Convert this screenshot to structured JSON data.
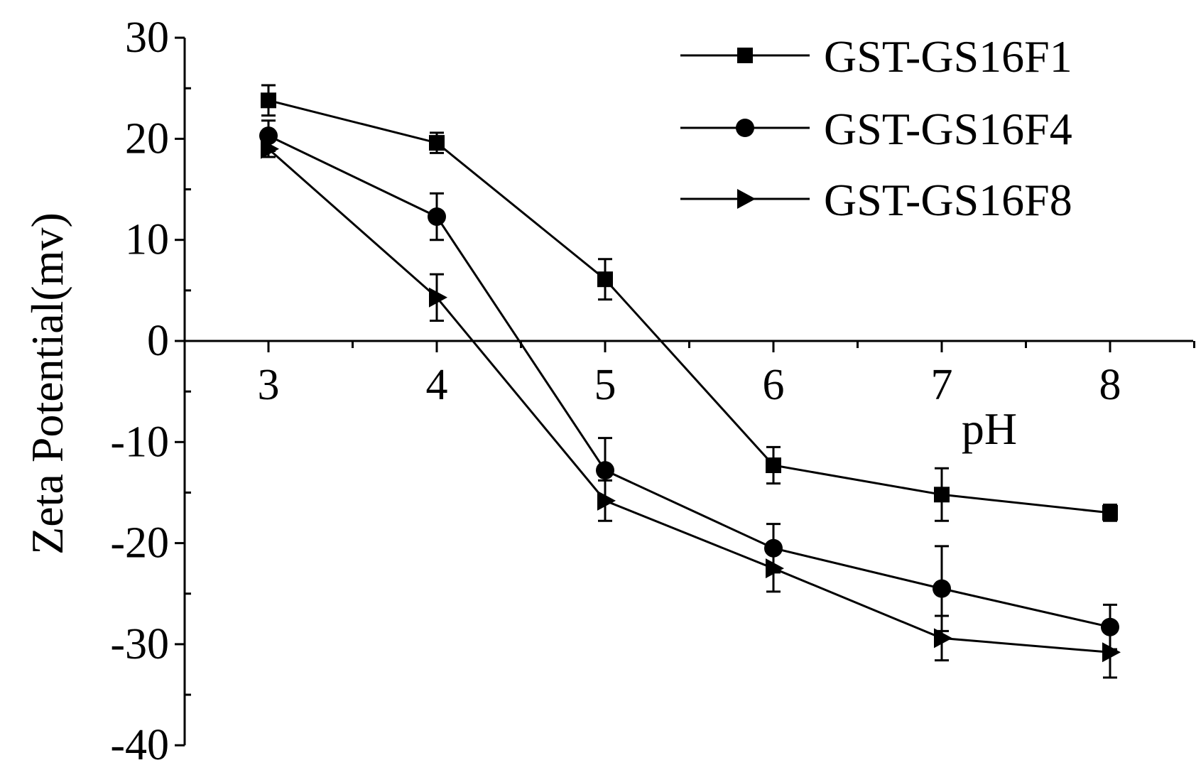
{
  "chart_data": {
    "type": "line",
    "xlabel": "pH",
    "ylabel": "Zeta Potential(mv)",
    "x": [
      3,
      4,
      5,
      6,
      7,
      8
    ],
    "xlim": [
      2.5,
      8.5
    ],
    "ylim": [
      -40,
      30
    ],
    "xticks": [
      "3",
      "4",
      "5",
      "6",
      "7",
      "8"
    ],
    "yticks": [
      "30",
      "20",
      "10",
      "0",
      "-10",
      "-20",
      "-30",
      "-40"
    ],
    "ytick_values": [
      30,
      20,
      10,
      0,
      -10,
      -20,
      -30,
      -40
    ],
    "grid": false,
    "legend_position": "top-right",
    "series": [
      {
        "name": "GST-GS16F1",
        "marker": "square",
        "values": [
          23.8,
          19.6,
          6.1,
          -12.3,
          -15.2,
          -17.0
        ],
        "errors": [
          1.5,
          1.0,
          2.0,
          1.8,
          2.6,
          0.8
        ]
      },
      {
        "name": "GST-GS16F4",
        "marker": "circle",
        "values": [
          20.3,
          12.3,
          -12.8,
          -20.5,
          -24.5,
          -28.3
        ],
        "errors": [
          1.5,
          2.3,
          3.2,
          2.4,
          4.2,
          2.2
        ]
      },
      {
        "name": "GST-GS16F8",
        "marker": "triangle-right",
        "values": [
          19.0,
          4.3,
          -15.8,
          -22.5,
          -29.4,
          -30.8
        ],
        "errors": [
          0.8,
          2.3,
          2.0,
          2.3,
          2.2,
          2.5
        ]
      }
    ]
  }
}
